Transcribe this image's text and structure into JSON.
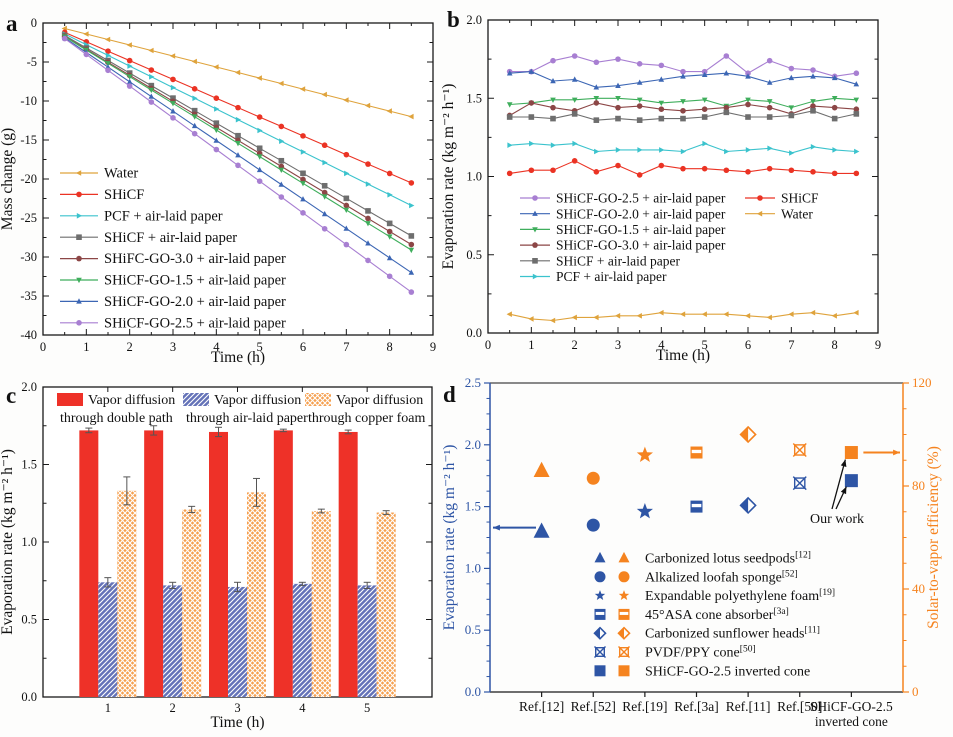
{
  "figure": {
    "panels": [
      {
        "letter": "a"
      },
      {
        "letter": "b"
      },
      {
        "letter": "c"
      },
      {
        "letter": "d"
      }
    ]
  },
  "chart_data": [
    {
      "id": "a",
      "type": "line",
      "xlabel": "Time (h)",
      "ylabel": "Mass change (g)",
      "xlim": [
        0,
        9
      ],
      "ylim": [
        -40,
        0
      ],
      "xticks": [
        0,
        1,
        2,
        3,
        4,
        5,
        6,
        7,
        8,
        9
      ],
      "xtick_labels": [
        "0",
        "1",
        "2",
        "3",
        "4",
        "5",
        "6",
        "7",
        "8",
        "9"
      ],
      "yticks": [
        0,
        -5,
        -10,
        -15,
        -20,
        -25,
        -30,
        -35,
        -40
      ],
      "ytick_labels": [
        "0",
        "-5",
        "-10",
        "-15",
        "-20",
        "-25",
        "-30",
        "-35",
        "-40"
      ],
      "x": [
        0.5,
        1,
        1.5,
        2,
        2.5,
        3,
        3.5,
        4,
        4.5,
        5,
        5.5,
        6,
        6.5,
        7,
        7.5,
        8,
        8.5
      ],
      "series": [
        {
          "name": "Water",
          "color": "#DFA33C",
          "marker": "tri-left",
          "values": [
            -0.7,
            -1.41,
            -2.11,
            -2.82,
            -3.53,
            -4.23,
            -4.94,
            -5.64,
            -6.35,
            -7.06,
            -7.76,
            -8.47,
            -9.18,
            -9.88,
            -10.59,
            -11.29,
            -12.0
          ]
        },
        {
          "name": "SHiCF",
          "color": "#EB3324",
          "marker": "circle",
          "values": [
            -1.2,
            -2.41,
            -3.61,
            -4.82,
            -6.03,
            -7.23,
            -8.44,
            -9.64,
            -10.85,
            -12.06,
            -13.26,
            -14.47,
            -15.67,
            -16.88,
            -18.09,
            -19.29,
            -20.5
          ]
        },
        {
          "name": "PCF + air-laid paper",
          "color": "#3BC3CD",
          "marker": "tri-right",
          "values": [
            -1.4,
            -2.78,
            -4.15,
            -5.53,
            -6.9,
            -8.28,
            -9.65,
            -11.03,
            -12.4,
            -13.78,
            -15.15,
            -16.53,
            -17.9,
            -19.28,
            -20.65,
            -22.03,
            -23.4
          ]
        },
        {
          "name": "SHiCF + air-laid paper",
          "color": "#6E6E6E",
          "marker": "square",
          "values": [
            -1.6,
            -3.21,
            -4.81,
            -6.42,
            -8.03,
            -9.63,
            -11.24,
            -12.84,
            -14.45,
            -16.06,
            -17.66,
            -19.27,
            -20.87,
            -22.48,
            -24.09,
            -25.69,
            -27.3
          ]
        },
        {
          "name": "SHiFC-GO-3.0 + air-laid paper",
          "color": "#8C4646",
          "marker": "circle",
          "values": [
            -1.7,
            -3.37,
            -5.04,
            -6.71,
            -8.38,
            -10.04,
            -11.71,
            -13.38,
            -15.05,
            -16.72,
            -18.39,
            -20.06,
            -21.73,
            -23.39,
            -25.06,
            -26.73,
            -28.4
          ]
        },
        {
          "name": "SHiCF-GO-1.5 + air-laid paper",
          "color": "#3FAE5C",
          "marker": "tri-down",
          "values": [
            -1.75,
            -3.46,
            -5.17,
            -6.88,
            -8.59,
            -10.3,
            -12.01,
            -13.72,
            -15.42,
            -17.13,
            -18.84,
            -20.55,
            -22.26,
            -23.97,
            -25.68,
            -27.39,
            -29.1
          ]
        },
        {
          "name": "SHiCF-GO-2.0 + air-laid paper",
          "color": "#3C66B4",
          "marker": "tri-up",
          "values": [
            -1.9,
            -3.78,
            -5.66,
            -7.54,
            -9.43,
            -11.31,
            -13.19,
            -15.07,
            -16.95,
            -18.83,
            -20.71,
            -22.59,
            -24.48,
            -26.36,
            -28.24,
            -30.12,
            -32.0
          ]
        },
        {
          "name": "SHiCF-GO-2.5 + air-laid paper",
          "color": "#A87FD2",
          "marker": "circle",
          "values": [
            -2.0,
            -4.03,
            -6.06,
            -8.09,
            -10.13,
            -12.16,
            -14.19,
            -16.22,
            -18.25,
            -20.28,
            -22.31,
            -24.34,
            -26.38,
            -28.41,
            -30.44,
            -32.47,
            -34.5
          ]
        }
      ]
    },
    {
      "id": "b",
      "type": "line",
      "xlabel": "Time (h)",
      "ylabel": "Evaporation rate (kg m⁻² h⁻¹)",
      "xlim": [
        0,
        9
      ],
      "ylim": [
        0,
        2
      ],
      "xticks": [
        0,
        1,
        2,
        3,
        4,
        5,
        6,
        7,
        8,
        9
      ],
      "xtick_labels": [
        "0",
        "1",
        "2",
        "3",
        "4",
        "5",
        "6",
        "7",
        "8",
        "9"
      ],
      "yticks": [
        0,
        0.5,
        1.0,
        1.5,
        2.0
      ],
      "ytick_labels": [
        "0.0",
        "0.5",
        "1.0",
        "1.5",
        "2.0"
      ],
      "x": [
        0.5,
        1,
        1.5,
        2,
        2.5,
        3,
        3.5,
        4,
        4.5,
        5,
        5.5,
        6,
        6.5,
        7,
        7.5,
        8,
        8.5
      ],
      "legend_col2_start": 6,
      "series": [
        {
          "name": "SHiCF-GO-2.5 + air-laid paper",
          "color": "#A87FD2",
          "marker": "circle",
          "values": [
            1.67,
            1.67,
            1.74,
            1.77,
            1.73,
            1.75,
            1.72,
            1.71,
            1.67,
            1.67,
            1.77,
            1.66,
            1.74,
            1.69,
            1.68,
            1.64,
            1.66
          ]
        },
        {
          "name": "SHiCF-GO-2.0 + air-laid paper",
          "color": "#3C66B4",
          "marker": "tri-up",
          "values": [
            1.66,
            1.67,
            1.61,
            1.62,
            1.57,
            1.58,
            1.6,
            1.62,
            1.64,
            1.65,
            1.66,
            1.64,
            1.6,
            1.63,
            1.64,
            1.63,
            1.59
          ]
        },
        {
          "name": "SHiCF-GO-1.5 + air-laid paper",
          "color": "#3FAE5C",
          "marker": "tri-down",
          "values": [
            1.46,
            1.47,
            1.49,
            1.49,
            1.5,
            1.5,
            1.49,
            1.47,
            1.48,
            1.49,
            1.45,
            1.49,
            1.48,
            1.44,
            1.48,
            1.5,
            1.49
          ]
        },
        {
          "name": "SHiCF-GO-3.0 + air-laid paper",
          "color": "#8C4646",
          "marker": "circle",
          "values": [
            1.39,
            1.47,
            1.44,
            1.42,
            1.47,
            1.44,
            1.45,
            1.43,
            1.42,
            1.43,
            1.44,
            1.46,
            1.44,
            1.4,
            1.45,
            1.44,
            1.43
          ]
        },
        {
          "name": "SHiCF + air-laid paper",
          "color": "#6E6E6E",
          "marker": "square",
          "values": [
            1.38,
            1.38,
            1.37,
            1.4,
            1.36,
            1.37,
            1.36,
            1.37,
            1.37,
            1.38,
            1.41,
            1.38,
            1.38,
            1.39,
            1.42,
            1.37,
            1.4
          ]
        },
        {
          "name": "PCF + air-laid paper",
          "color": "#3BC3CD",
          "marker": "tri-right",
          "values": [
            1.2,
            1.21,
            1.2,
            1.21,
            1.16,
            1.17,
            1.17,
            1.17,
            1.16,
            1.21,
            1.16,
            1.17,
            1.18,
            1.15,
            1.19,
            1.17,
            1.16
          ]
        },
        {
          "name": "SHiCF",
          "color": "#EB3324",
          "marker": "circle",
          "values": [
            1.02,
            1.04,
            1.04,
            1.1,
            1.03,
            1.07,
            1.01,
            1.07,
            1.05,
            1.05,
            1.04,
            1.03,
            1.05,
            1.04,
            1.03,
            1.02,
            1.02
          ]
        },
        {
          "name": "Water",
          "color": "#DFA33C",
          "marker": "tri-left",
          "values": [
            0.12,
            0.09,
            0.08,
            0.1,
            0.1,
            0.11,
            0.11,
            0.13,
            0.12,
            0.12,
            0.12,
            0.11,
            0.1,
            0.12,
            0.13,
            0.11,
            0.13
          ]
        }
      ]
    },
    {
      "id": "c",
      "type": "bar",
      "xlabel": "Time (h)",
      "ylabel": "Evaporation rate (kg m⁻² h⁻¹)",
      "ylim": [
        0,
        2
      ],
      "yticks": [
        0,
        0.5,
        1.0,
        1.5,
        2.0
      ],
      "ytick_labels": [
        "0.0",
        "0.5",
        "1.0",
        "1.5",
        "2.0"
      ],
      "categories": [
        "1",
        "2",
        "3",
        "4",
        "5"
      ],
      "series": [
        {
          "name": "Vapor diffusion through double path",
          "name_line1": "Vapor diffusion",
          "name_line2": "through double path",
          "color": "#EE3128",
          "hatch": "none",
          "values": [
            1.72,
            1.72,
            1.71,
            1.72,
            1.71
          ],
          "errors": [
            0.015,
            0.03,
            0.03,
            0.008,
            0.012
          ]
        },
        {
          "name": "Vapor diffusion through air-laid paper",
          "name_line1": "Vapor diffusion",
          "name_line2": "through air-laid paper",
          "color": "#6472B8",
          "hatch": "diag",
          "values": [
            0.74,
            0.72,
            0.71,
            0.73,
            0.72
          ],
          "errors": [
            0.03,
            0.02,
            0.03,
            0.01,
            0.02
          ]
        },
        {
          "name": "Vapor diffusion through copper foam",
          "name_line1": "Vapor diffusion",
          "name_line2": "through copper foam",
          "color": "#F5A050",
          "hatch": "cross",
          "values": [
            1.33,
            1.21,
            1.32,
            1.2,
            1.19
          ],
          "errors": [
            0.09,
            0.02,
            0.09,
            0.012,
            0.012
          ]
        }
      ]
    },
    {
      "id": "d",
      "type": "scatter-dual",
      "left_axis": {
        "label": "Evaporation rate (kg m⁻² h⁻¹)",
        "lim": [
          0,
          2.5
        ],
        "ticks": [
          0,
          0.5,
          1.0,
          1.5,
          2.0,
          2.5
        ],
        "tick_labels": [
          "0.0",
          "0.5",
          "1.0",
          "1.5",
          "2.0",
          "2.5"
        ],
        "color": "#2E55A5"
      },
      "right_axis": {
        "label": "Solar-to-vapor efficiency (%)",
        "lim": [
          0,
          120
        ],
        "ticks": [
          0,
          40,
          80,
          120
        ],
        "tick_labels": [
          "0",
          "40",
          "80",
          "120"
        ],
        "color": "#F5831F"
      },
      "categories": [
        [
          "Ref.[12]"
        ],
        [
          "Ref.[52]"
        ],
        [
          "Ref.[19]"
        ],
        [
          "Ref.[3a]"
        ],
        [
          "Ref.[11]"
        ],
        [
          "Ref.[50]"
        ],
        [
          "SHiCF-GO-2.5",
          "inverted cone"
        ]
      ],
      "points": [
        {
          "label": "Carbonized lotus seedpods",
          "sup": "[12]",
          "marker": "tri-up",
          "evap": 1.3,
          "eff": 86
        },
        {
          "label": "Alkalized loofah sponge",
          "sup": "[52]",
          "marker": "circle",
          "evap": 1.35,
          "eff": 83
        },
        {
          "label": "Expandable polyethylene foam",
          "sup": "[19]",
          "marker": "star",
          "evap": 1.46,
          "eff": 92
        },
        {
          "label": "45°ASA cone absorber",
          "sup": "[3a]",
          "marker": "square-hstripe",
          "evap": 1.5,
          "eff": 93
        },
        {
          "label": "Carbonized sunflower heads",
          "sup": "[11]",
          "marker": "diamond-half",
          "evap": 1.51,
          "eff": 100
        },
        {
          "label": "PVDF/PPY cone",
          "sup": "[50]",
          "marker": "square-x",
          "evap": 1.69,
          "eff": 94
        },
        {
          "label": "SHiCF-GO-2.5 inverted cone",
          "sup": "",
          "marker": "square",
          "evap": 1.71,
          "eff": 93
        }
      ],
      "annotations": {
        "our_work": "Our work"
      }
    }
  ]
}
